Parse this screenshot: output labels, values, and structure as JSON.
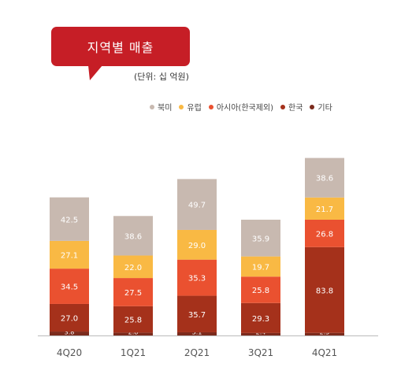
{
  "title": "지역별 매출",
  "unit_note": "(단위: 십 억원)",
  "chart_data": {
    "type": "bar",
    "stacked": true,
    "categories": [
      "4Q20",
      "1Q21",
      "2Q21",
      "3Q21",
      "4Q21"
    ],
    "series": [
      {
        "name": "기타",
        "color": "#7B2A1C",
        "values": [
          3.8,
          2.8,
          3.1,
          2.4,
          2.5
        ]
      },
      {
        "name": "한국",
        "color": "#A5311B",
        "values": [
          27.0,
          25.8,
          35.7,
          29.3,
          83.8
        ]
      },
      {
        "name": "아시아(한국제외)",
        "color": "#EA5130",
        "values": [
          34.5,
          27.5,
          35.3,
          25.8,
          26.8
        ]
      },
      {
        "name": "유럽",
        "color": "#F9B944",
        "values": [
          27.1,
          22.0,
          29.0,
          19.7,
          21.7
        ]
      },
      {
        "name": "북미",
        "color": "#C8B9B0",
        "values": [
          42.5,
          38.6,
          49.7,
          35.9,
          38.6
        ]
      }
    ],
    "legend_order": [
      "북미",
      "유럽",
      "아시아(한국제외)",
      "한국",
      "기타"
    ],
    "legend_position": "top-right",
    "grid": false
  }
}
